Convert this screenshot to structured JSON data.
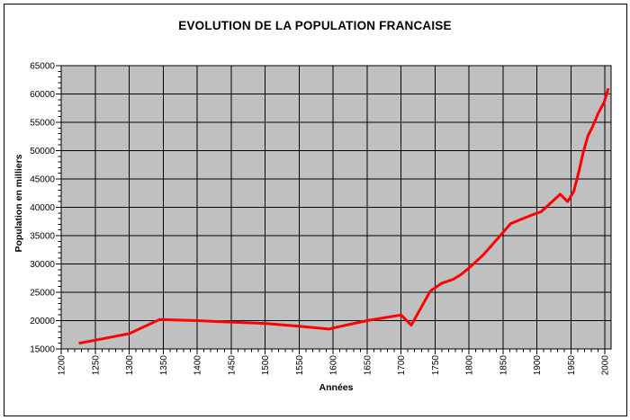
{
  "chart_data": {
    "type": "line",
    "title": "EVOLUTION DE LA POPULATION FRANCAISE",
    "xlabel": "Années",
    "ylabel": "Population en milliers",
    "xlim": [
      1200,
      2009
    ],
    "ylim": [
      15000,
      65000
    ],
    "x_ticks": [
      1200,
      1250,
      1300,
      1350,
      1400,
      1450,
      1500,
      1550,
      1600,
      1650,
      1700,
      1750,
      1800,
      1850,
      1900,
      1950,
      2000
    ],
    "y_ticks": [
      15000,
      20000,
      25000,
      30000,
      35000,
      40000,
      45000,
      50000,
      55000,
      60000,
      65000
    ],
    "x_minor_step": 10,
    "y_minor_step": 1000,
    "grid": "major-both",
    "legend": "none",
    "plot_bg": "#c0c0c0",
    "grid_color": "#000000",
    "line_color": "#ff0000",
    "line_width": 3,
    "series": [
      {
        "points": [
          [
            1226,
            16000
          ],
          [
            1300,
            17700
          ],
          [
            1345,
            20200
          ],
          [
            1400,
            20000
          ],
          [
            1457,
            19700
          ],
          [
            1500,
            19500
          ],
          [
            1550,
            19000
          ],
          [
            1594,
            18500
          ],
          [
            1600,
            18700
          ],
          [
            1650,
            20000
          ],
          [
            1675,
            20500
          ],
          [
            1700,
            21000
          ],
          [
            1715,
            19200
          ],
          [
            1743,
            25200
          ],
          [
            1760,
            26600
          ],
          [
            1777,
            27300
          ],
          [
            1789,
            28200
          ],
          [
            1801,
            29400
          ],
          [
            1821,
            31600
          ],
          [
            1851,
            35700
          ],
          [
            1861,
            37100
          ],
          [
            1881,
            38100
          ],
          [
            1896,
            38800
          ],
          [
            1906,
            39200
          ],
          [
            1934,
            42300
          ],
          [
            1945,
            41000
          ],
          [
            1954,
            42800
          ],
          [
            1962,
            46500
          ],
          [
            1968,
            49700
          ],
          [
            1975,
            52600
          ],
          [
            1982,
            54300
          ],
          [
            1990,
            56600
          ],
          [
            1999,
            58600
          ],
          [
            2005,
            61000
          ]
        ]
      }
    ]
  }
}
